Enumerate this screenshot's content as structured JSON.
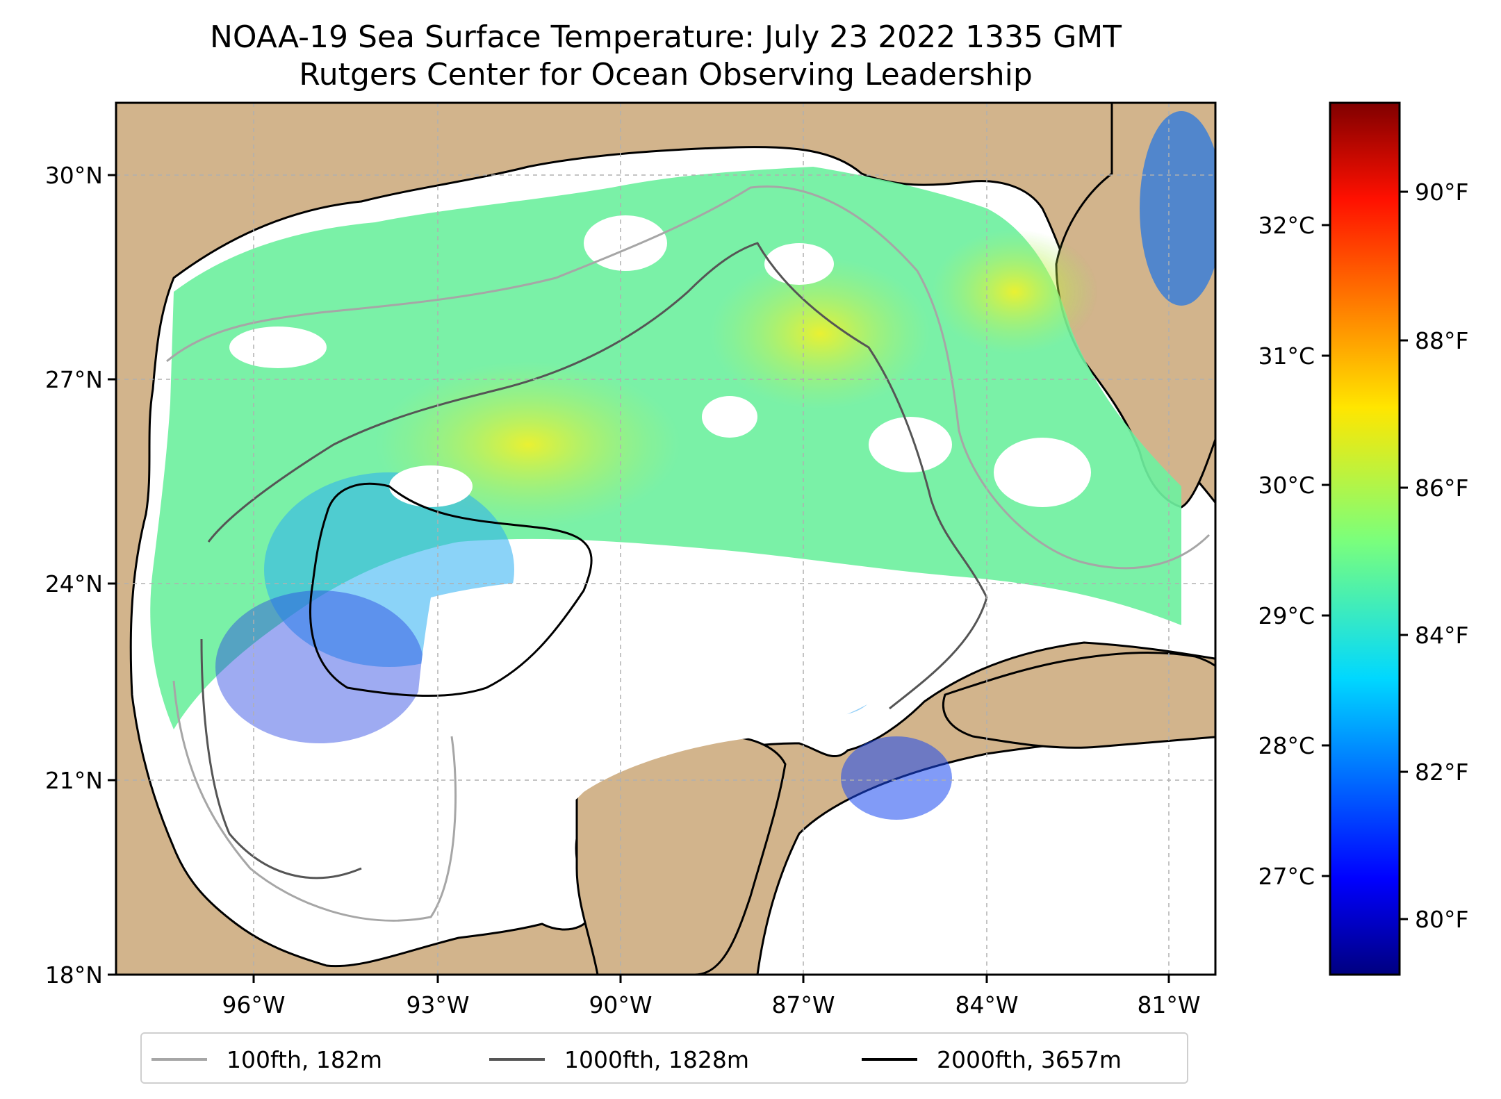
{
  "title": {
    "line1": "NOAA-19 Sea Surface Temperature: July 23 2022 1335 GMT",
    "line2": "Rutgers Center for Ocean Observing Leadership"
  },
  "map": {
    "extent": {
      "lon": [
        -98,
        -80
      ],
      "lat": [
        18,
        31
      ]
    },
    "lat_ticks": [
      "30°N",
      "27°N",
      "24°N",
      "21°N",
      "18°N"
    ],
    "lon_ticks": [
      "96°W",
      "93°W",
      "90°W",
      "87°W",
      "84°W",
      "81°W"
    ],
    "land_color": "#d2b48c",
    "no_data_color": "#ffffff",
    "gridlines": true
  },
  "colorbar": {
    "colormap": "jet",
    "celsius_ticks": [
      "32°C",
      "31°C",
      "30°C",
      "29°C",
      "28°C",
      "27°C"
    ],
    "fahrenheit_ticks": [
      "90°F",
      "88°F",
      "86°F",
      "84°F",
      "82°F",
      "80°F"
    ]
  },
  "legend": {
    "items": [
      {
        "label": "100fth, 182m",
        "color": "#a6a6a6"
      },
      {
        "label": "1000fth, 1828m",
        "color": "#555555"
      },
      {
        "label": "2000fth, 3657m",
        "color": "#000000"
      }
    ]
  }
}
